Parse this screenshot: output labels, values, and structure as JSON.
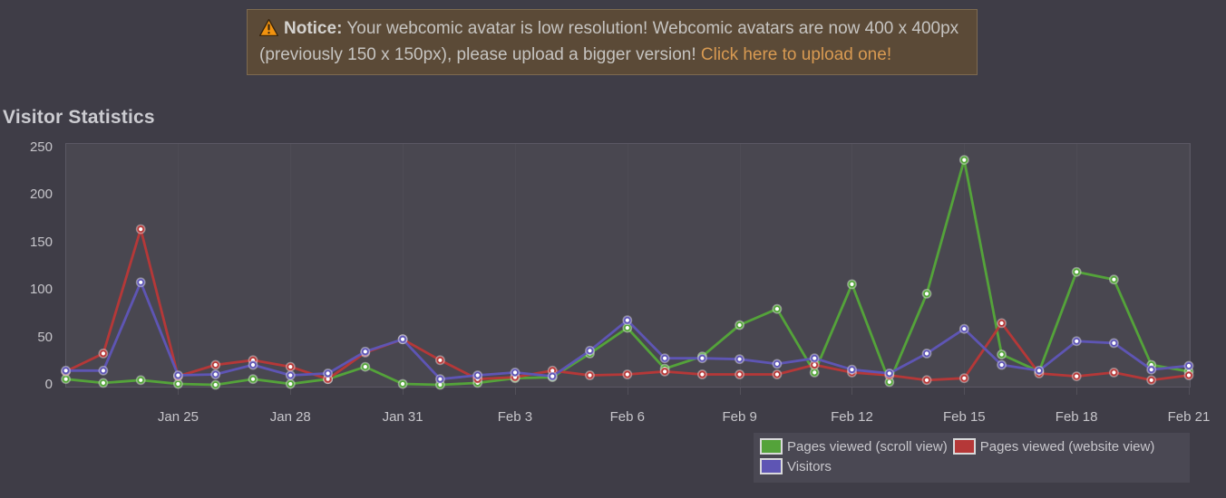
{
  "page_title": "Visitor Statistics",
  "notice": {
    "icon": "warning-triangle",
    "prefix": "Notice:",
    "body": " Your webcomic avatar is low resolution! Webcomic avatars are now 400 x 400px (previously 150 x 150px), please upload a bigger version! ",
    "link": "Click here to upload one!",
    "link_color": "#d89a52",
    "background": "#5b4a37",
    "border_color": "#7d6a50"
  },
  "colors": {
    "page_background": "#3f3d47",
    "plot_background": "#494750",
    "plot_border": "#5b5864",
    "axis_text": "#c6c5ca",
    "legend_background": "#4a4853"
  },
  "chart_data": {
    "type": "line",
    "title": "Visitor Statistics",
    "xlabel": "",
    "ylabel": "",
    "ylim": [
      0,
      250
    ],
    "y_ticks": [
      0,
      50,
      100,
      150,
      200,
      250
    ],
    "grid": false,
    "legend_position": "bottom-right",
    "x": [
      "Jan 22",
      "Jan 23",
      "Jan 24",
      "Jan 25",
      "Jan 26",
      "Jan 27",
      "Jan 28",
      "Jan 29",
      "Jan 30",
      "Jan 31",
      "Feb 1",
      "Feb 2",
      "Feb 3",
      "Feb 4",
      "Feb 5",
      "Feb 6",
      "Feb 7",
      "Feb 8",
      "Feb 9",
      "Feb 10",
      "Feb 11",
      "Feb 12",
      "Feb 13",
      "Feb 14",
      "Feb 15",
      "Feb 16",
      "Feb 17",
      "Feb 18",
      "Feb 19",
      "Feb 20",
      "Feb 21"
    ],
    "x_tick_labels": [
      "Jan 25",
      "Jan 28",
      "Jan 31",
      "Feb 3",
      "Feb 6",
      "Feb 9",
      "Feb 12",
      "Feb 15",
      "Feb 18",
      "Feb 21"
    ],
    "x_tick_day_indices": [
      3,
      6,
      9,
      12,
      15,
      18,
      21,
      24,
      27,
      30
    ],
    "series": [
      {
        "name": "Pages viewed (scroll view)",
        "color": "#54a33a",
        "values": [
          6,
          2,
          5,
          1,
          0,
          6,
          1,
          6,
          19,
          1,
          0,
          2,
          7,
          8,
          33,
          60,
          17,
          30,
          63,
          80,
          13,
          106,
          3,
          96,
          237,
          32,
          14,
          119,
          111,
          21,
          14
        ]
      },
      {
        "name": "Pages viewed (website view)",
        "color": "#b53838",
        "values": [
          14,
          33,
          164,
          9,
          21,
          26,
          19,
          6,
          34,
          48,
          26,
          6,
          8,
          15,
          10,
          11,
          14,
          11,
          11,
          11,
          21,
          13,
          10,
          5,
          7,
          65,
          12,
          9,
          13,
          5,
          10
        ]
      },
      {
        "name": "Visitors",
        "color": "#5e55b4",
        "values": [
          15,
          15,
          108,
          10,
          11,
          21,
          10,
          12,
          35,
          48,
          6,
          10,
          13,
          9,
          36,
          68,
          28,
          28,
          27,
          22,
          28,
          16,
          12,
          33,
          59,
          21,
          15,
          46,
          44,
          16,
          20
        ]
      }
    ]
  }
}
